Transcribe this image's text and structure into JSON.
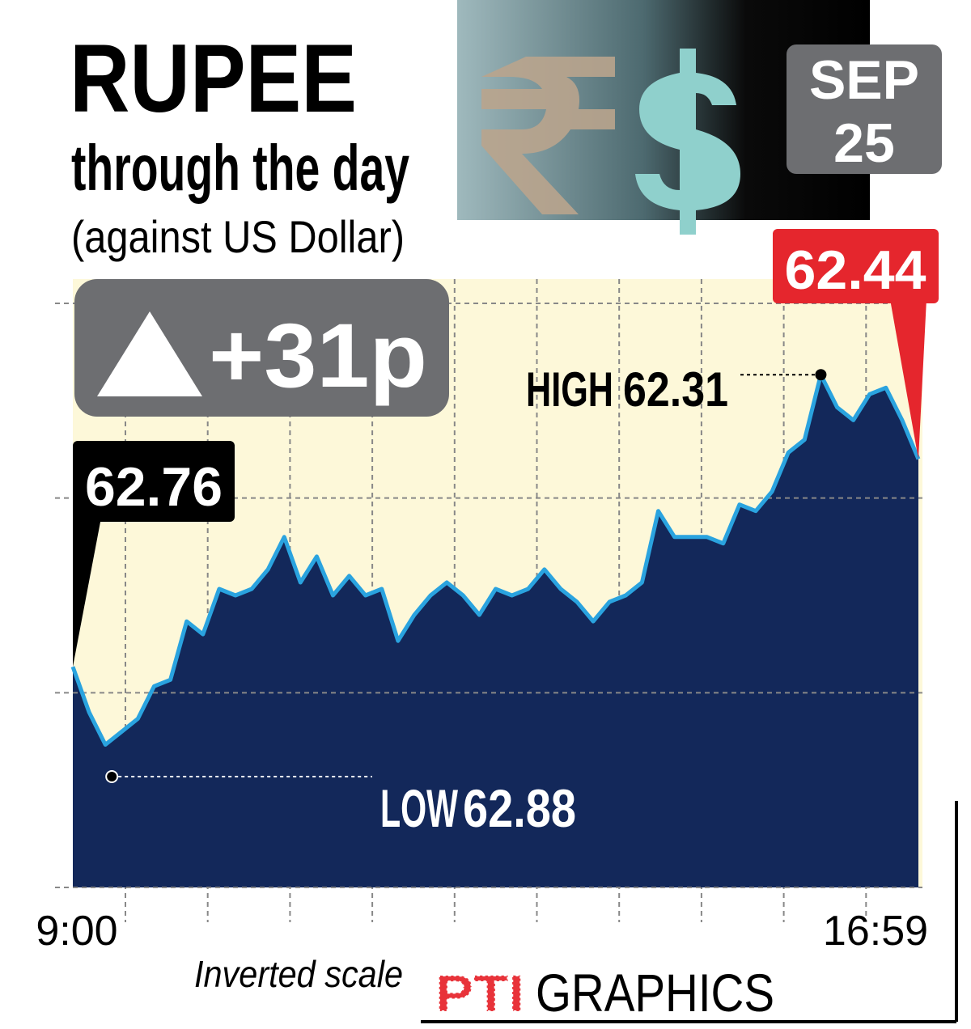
{
  "chart_data": {
    "type": "area",
    "title": "RUPEE",
    "subtitle": "through the day",
    "note": "(against US Dollar)",
    "date_lines": [
      "SEP",
      "25"
    ],
    "change_label": "+31p",
    "high_label": "HIGH",
    "low_label": "LOW",
    "scale_note": "Inverted scale",
    "source": {
      "logo": "PTI",
      "name": "GRAPHICS"
    },
    "categories": [
      "9:00",
      null,
      null,
      null,
      null,
      null,
      null,
      null,
      null,
      null,
      null,
      null,
      null,
      null,
      null,
      null,
      null,
      null,
      null,
      null,
      null,
      null,
      null,
      null,
      null,
      null,
      null,
      null,
      null,
      null,
      null,
      null,
      null,
      null,
      null,
      null,
      null,
      null,
      null,
      null,
      null,
      null,
      null,
      null,
      null,
      null,
      null,
      null,
      null,
      null,
      null,
      null,
      "16:59"
    ],
    "values": [
      62.76,
      62.83,
      62.88,
      62.86,
      62.84,
      62.79,
      62.78,
      62.69,
      62.71,
      62.64,
      62.65,
      62.64,
      62.61,
      62.56,
      62.63,
      62.59,
      62.65,
      62.62,
      62.65,
      62.64,
      62.72,
      62.68,
      62.65,
      62.63,
      62.65,
      62.68,
      62.64,
      62.65,
      62.64,
      62.61,
      62.64,
      62.66,
      62.69,
      62.66,
      62.65,
      62.63,
      62.52,
      62.56,
      62.56,
      62.56,
      62.57,
      62.51,
      62.52,
      62.49,
      62.43,
      62.41,
      62.31,
      62.36,
      62.38,
      62.34,
      62.33,
      62.38,
      62.44
    ],
    "color": "#2aa3df",
    "fill_color": "#13285a",
    "ylim": [
      63.1,
      62.2
    ],
    "yticks": [
      62.2,
      62.5,
      62.8,
      63.1
    ],
    "grid": true
  }
}
